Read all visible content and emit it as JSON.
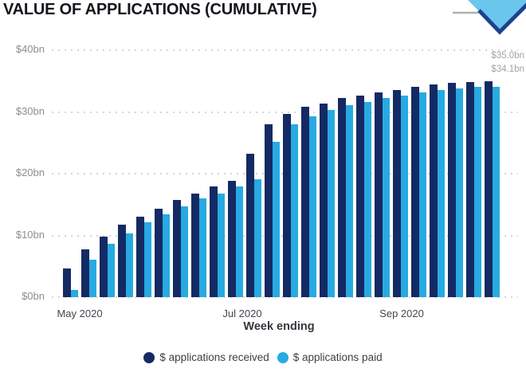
{
  "header": {
    "title": "VALUE OF APPLICATIONS (CUMULATIVE)",
    "logo_icon": "blue-diamond-banner"
  },
  "colors": {
    "received_bar": "#142A64",
    "paid_bar": "#27AAE1",
    "gridline": "#D5D5D7",
    "y_axis_text": "#8D8D93",
    "x_axis_text": "#45464F",
    "data_label_text": "#A3A3A7",
    "title_text": "#15151D"
  },
  "chart_data": {
    "type": "bar",
    "title": "VALUE OF APPLICATIONS (CUMULATIVE)",
    "xlabel": "Week ending",
    "ylabel": "",
    "ylim": [
      0,
      40
    ],
    "y_ticks": [
      "$0bn",
      "$10bn",
      "$20bn",
      "$30bn",
      "$40bn"
    ],
    "x_ticks": [
      "May 2020",
      "Jul 2020",
      "Sep 2020"
    ],
    "grid": "dotted-horizontal",
    "legend_position": "bottom-center",
    "categories_note": "24 weekly periods, week ending May 2020 through Oct 2020",
    "series": [
      {
        "name": "$ applications received",
        "color": "#142A64",
        "values": [
          4.7,
          7.8,
          9.8,
          11.7,
          13.0,
          14.3,
          15.8,
          16.8,
          17.9,
          18.8,
          23.2,
          28.0,
          29.7,
          30.8,
          31.3,
          32.2,
          32.7,
          33.2,
          33.6,
          34.0,
          34.5,
          34.7,
          34.9,
          35.0
        ]
      },
      {
        "name": "$ applications paid",
        "color": "#27AAE1",
        "values": [
          1.1,
          6.0,
          8.7,
          10.3,
          12.1,
          13.4,
          14.7,
          16.0,
          16.8,
          17.9,
          19.1,
          25.1,
          28.0,
          29.3,
          30.3,
          31.1,
          31.6,
          32.3,
          32.7,
          33.1,
          33.6,
          33.8,
          34.0,
          34.1
        ]
      }
    ],
    "end_labels": [
      "$35.0bn",
      "$34.1bn"
    ]
  },
  "legend": {
    "items": [
      {
        "label": "$ applications received",
        "color": "#142A64"
      },
      {
        "label": "$ applications paid",
        "color": "#27AAE1"
      }
    ]
  }
}
